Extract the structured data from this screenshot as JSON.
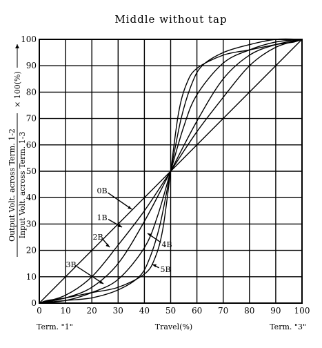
{
  "chart_data": {
    "type": "line",
    "title": "Middle without tap",
    "xlabel": "Travel(%)",
    "x_end_labels": {
      "left": "Term. \"1\"",
      "right": "Term. \"3\""
    },
    "ylabel": {
      "numerator": "Output Volt. across Term. 1-2",
      "denominator": "Input Volt. across Term. 1-3",
      "factor": "× 100(%)"
    },
    "xlim": [
      0,
      100
    ],
    "ylim": [
      0,
      100
    ],
    "xticks": [
      "0",
      "10",
      "20",
      "30",
      "40",
      "50",
      "60",
      "70",
      "80",
      "90",
      "100"
    ],
    "yticks": [
      "0",
      "10",
      "20",
      "30",
      "40",
      "50",
      "60",
      "70",
      "80",
      "90",
      "100"
    ],
    "grid": true,
    "series": [
      {
        "name": "0B",
        "x": [
          0,
          50,
          100
        ],
        "y": [
          0,
          50,
          100
        ]
      },
      {
        "name": "1B",
        "x": [
          0,
          10,
          20,
          30,
          40,
          50,
          60,
          70,
          80,
          90,
          100
        ],
        "y": [
          0,
          3,
          10,
          22,
          35,
          50,
          65,
          78,
          90,
          97,
          100
        ]
      },
      {
        "name": "2B",
        "x": [
          0,
          10,
          20,
          30,
          40,
          50,
          60,
          70,
          80,
          90,
          100
        ],
        "y": [
          0,
          2,
          6,
          15,
          31,
          50,
          69,
          85,
          94,
          98,
          100
        ]
      },
      {
        "name": "3B",
        "x": [
          0,
          10,
          20,
          30,
          40,
          45,
          50,
          55,
          60,
          70,
          80,
          90,
          100
        ],
        "y": [
          0,
          1,
          4,
          9,
          21,
          33,
          50,
          67,
          79,
          91,
          96,
          99,
          100
        ]
      },
      {
        "name": "4B",
        "x": [
          0,
          10,
          20,
          30,
          38,
          42,
          46,
          50,
          54,
          58,
          62,
          70,
          80,
          90,
          100
        ],
        "y": [
          0,
          1,
          2,
          5,
          10,
          17,
          30,
          50,
          70,
          83,
          90,
          95,
          98,
          100,
          100
        ]
      },
      {
        "name": "5B",
        "x": [
          0,
          3,
          10,
          20,
          30,
          40,
          44,
          47,
          50,
          53,
          56,
          60,
          70,
          80,
          90,
          97,
          100
        ],
        "y": [
          0,
          1,
          2,
          4,
          6,
          11,
          17,
          28,
          50,
          72,
          83,
          89,
          94,
          96,
          98,
          99,
          100
        ]
      }
    ],
    "annotations": [
      {
        "text": "0B",
        "series": "0B",
        "x": 30,
        "y": 30
      },
      {
        "text": "1B",
        "series": "1B",
        "x": 31,
        "y": 27
      },
      {
        "text": "2B",
        "series": "2B",
        "x": 26,
        "y": 16
      },
      {
        "text": "3B",
        "series": "3B",
        "x": 25,
        "y": 7
      },
      {
        "text": "4B",
        "series": "4B",
        "x": 43,
        "y": 26
      },
      {
        "text": "5B",
        "series": "5B",
        "x": 46,
        "y": 14
      }
    ]
  }
}
